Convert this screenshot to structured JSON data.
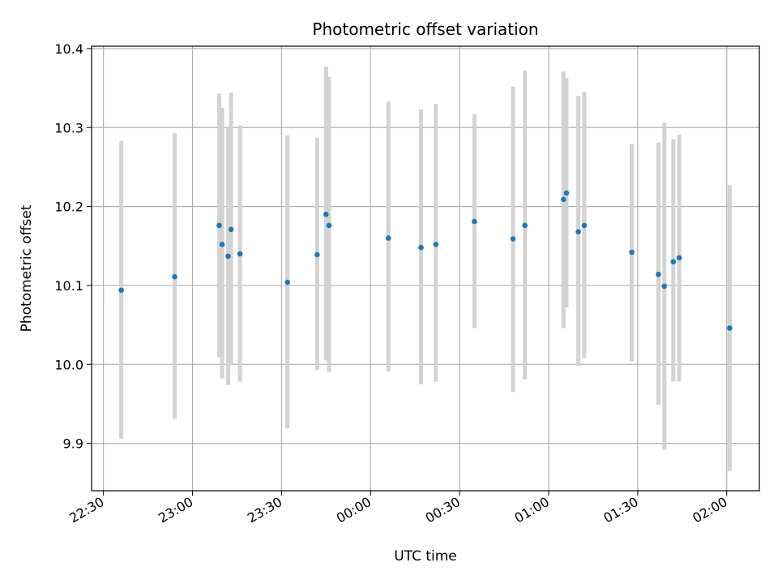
{
  "chart_data": {
    "type": "scatter",
    "title": "Photometric offset variation",
    "xlabel": "UTC time",
    "ylabel": "Photometric offset",
    "grid": true,
    "legend": "none",
    "x_ticks": [
      "22:30",
      "23:00",
      "23:30",
      "00:00",
      "00:30",
      "01:00",
      "01:30",
      "02:00"
    ],
    "y_ticks": [
      "9.9",
      "10.0",
      "10.1",
      "10.2",
      "10.3",
      "10.4"
    ],
    "xlim": [
      "22:26",
      "02:11"
    ],
    "ylim": [
      9.84,
      10.403
    ],
    "marker_color": "#1f77b4",
    "errorbar_color": "#d3d3d3",
    "points": [
      {
        "time": "22:36",
        "y": 10.094,
        "ylo": 9.906,
        "yhi": 10.283
      },
      {
        "time": "22:54",
        "y": 10.111,
        "ylo": 9.931,
        "yhi": 10.293
      },
      {
        "time": "23:09",
        "y": 10.176,
        "ylo": 10.009,
        "yhi": 10.343
      },
      {
        "time": "23:10",
        "y": 10.152,
        "ylo": 9.982,
        "yhi": 10.325
      },
      {
        "time": "23:12",
        "y": 10.137,
        "ylo": 9.974,
        "yhi": 10.301
      },
      {
        "time": "23:13",
        "y": 10.171,
        "ylo": 9.999,
        "yhi": 10.344
      },
      {
        "time": "23:16",
        "y": 10.14,
        "ylo": 9.978,
        "yhi": 10.303
      },
      {
        "time": "23:32",
        "y": 10.104,
        "ylo": 9.919,
        "yhi": 10.29
      },
      {
        "time": "23:42",
        "y": 10.139,
        "ylo": 9.993,
        "yhi": 10.287
      },
      {
        "time": "23:45",
        "y": 10.19,
        "ylo": 10.005,
        "yhi": 10.377
      },
      {
        "time": "23:46",
        "y": 10.176,
        "ylo": 9.99,
        "yhi": 10.364
      },
      {
        "time": "00:06",
        "y": 10.16,
        "ylo": 9.991,
        "yhi": 10.333
      },
      {
        "time": "00:17",
        "y": 10.148,
        "ylo": 9.975,
        "yhi": 10.323
      },
      {
        "time": "00:22",
        "y": 10.152,
        "ylo": 9.978,
        "yhi": 10.33
      },
      {
        "time": "00:35",
        "y": 10.181,
        "ylo": 10.046,
        "yhi": 10.317
      },
      {
        "time": "00:48",
        "y": 10.159,
        "ylo": 9.965,
        "yhi": 10.352
      },
      {
        "time": "00:52",
        "y": 10.176,
        "ylo": 9.981,
        "yhi": 10.372
      },
      {
        "time": "01:05",
        "y": 10.209,
        "ylo": 10.046,
        "yhi": 10.371
      },
      {
        "time": "01:06",
        "y": 10.217,
        "ylo": 10.072,
        "yhi": 10.363
      },
      {
        "time": "01:10",
        "y": 10.168,
        "ylo": 9.998,
        "yhi": 10.34
      },
      {
        "time": "01:12",
        "y": 10.176,
        "ylo": 10.008,
        "yhi": 10.345
      },
      {
        "time": "01:28",
        "y": 10.142,
        "ylo": 10.004,
        "yhi": 10.279
      },
      {
        "time": "01:37",
        "y": 10.114,
        "ylo": 9.949,
        "yhi": 10.281
      },
      {
        "time": "01:39",
        "y": 10.099,
        "ylo": 9.892,
        "yhi": 10.306
      },
      {
        "time": "01:42",
        "y": 10.13,
        "ylo": 9.978,
        "yhi": 10.285
      },
      {
        "time": "01:44",
        "y": 10.135,
        "ylo": 9.978,
        "yhi": 10.291
      },
      {
        "time": "02:01",
        "y": 10.046,
        "ylo": 9.865,
        "yhi": 10.227
      }
    ]
  }
}
